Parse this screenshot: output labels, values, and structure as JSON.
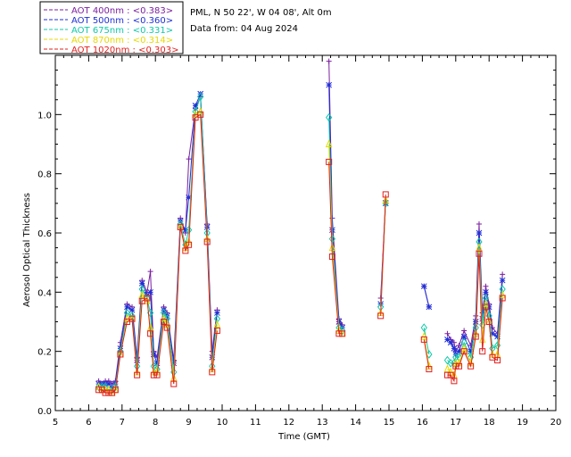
{
  "header": {
    "station": "PML, N 50 22', W 04 08', Alt 0m",
    "data_from": "Data from: 04 Aug 2024"
  },
  "legend": [
    {
      "label": "AOT  400nm : <0.383>",
      "color": "#7a1fa0"
    },
    {
      "label": "AOT  500nm : <0.360>",
      "color": "#1f2fd6"
    },
    {
      "label": "AOT  675nm : <0.331>",
      "color": "#11c9a8"
    },
    {
      "label": "AOT  870nm : <0.314>",
      "color": "#e8d800"
    },
    {
      "label": "AOT 1020nm : <0.303>",
      "color": "#e0201e"
    }
  ],
  "chart_data": {
    "type": "line",
    "xlabel": "Time (GMT)",
    "ylabel": "Aerosol Optical Thickness",
    "xlim": [
      5,
      20
    ],
    "ylim": [
      0,
      1.2
    ],
    "xticks": [
      "5",
      "6",
      "7",
      "8",
      "9",
      "10",
      "11",
      "12",
      "13",
      "14",
      "15",
      "16",
      "17",
      "18",
      "19",
      "20"
    ],
    "yticks": [
      "0.0",
      "0.2",
      "0.4",
      "0.6",
      "0.8",
      "1.0"
    ],
    "series": [
      {
        "name": "AOT  400nm",
        "color": "#7a1fa0",
        "marker": "cross",
        "x": [
          6.3,
          6.4,
          6.5,
          6.6,
          6.7,
          6.8,
          6.95,
          7.15,
          7.3,
          7.45,
          7.6,
          7.75,
          7.85,
          7.95,
          8.05,
          8.25,
          8.35,
          8.55,
          8.75,
          8.9,
          9.0,
          9.2,
          9.35,
          9.55,
          9.7,
          9.85,
          13.2,
          13.3,
          13.5,
          13.6,
          14.75,
          14.9,
          16.05,
          16.2,
          16.75,
          16.85,
          16.95,
          17.0,
          17.1,
          17.25,
          17.45,
          17.6,
          17.7,
          17.8,
          17.9,
          18.0,
          18.1,
          18.25,
          18.4
        ],
        "y": [
          0.1,
          0.09,
          0.1,
          0.1,
          0.09,
          0.1,
          0.23,
          0.36,
          0.35,
          0.18,
          0.44,
          0.4,
          0.47,
          0.2,
          0.18,
          0.35,
          0.33,
          0.17,
          0.65,
          0.6,
          0.85,
          1.02,
          1.06,
          0.63,
          0.2,
          0.34,
          1.18,
          0.65,
          0.31,
          0.29,
          0.38,
          0.71,
          0.42,
          0.35,
          0.26,
          0.24,
          0.23,
          0.2,
          0.22,
          0.27,
          0.22,
          0.32,
          0.63,
          0.33,
          0.42,
          0.36,
          0.28,
          0.26,
          0.46
        ]
      },
      {
        "name": "AOT  500nm",
        "color": "#1f2fd6",
        "marker": "star",
        "x": [
          6.3,
          6.4,
          6.5,
          6.6,
          6.7,
          6.8,
          6.95,
          7.15,
          7.3,
          7.45,
          7.6,
          7.75,
          7.85,
          7.95,
          8.05,
          8.25,
          8.35,
          8.55,
          8.75,
          8.9,
          9.0,
          9.2,
          9.35,
          9.55,
          9.7,
          9.85,
          13.2,
          13.3,
          13.5,
          13.6,
          14.75,
          14.9,
          16.05,
          16.2,
          16.75,
          16.85,
          16.95,
          17.0,
          17.1,
          17.25,
          17.45,
          17.6,
          17.7,
          17.8,
          17.9,
          18.0,
          18.1,
          18.25,
          18.4
        ],
        "y": [
          0.09,
          0.09,
          0.09,
          0.09,
          0.08,
          0.09,
          0.21,
          0.35,
          0.34,
          0.17,
          0.43,
          0.39,
          0.4,
          0.19,
          0.16,
          0.34,
          0.32,
          0.16,
          0.64,
          0.61,
          0.72,
          1.03,
          1.07,
          0.62,
          0.18,
          0.33,
          1.1,
          0.61,
          0.3,
          0.28,
          0.36,
          0.7,
          0.42,
          0.35,
          0.24,
          0.23,
          0.21,
          0.19,
          0.2,
          0.25,
          0.2,
          0.3,
          0.6,
          0.31,
          0.4,
          0.35,
          0.26,
          0.25,
          0.44
        ]
      },
      {
        "name": "AOT  675nm",
        "color": "#11c9a8",
        "marker": "diamond",
        "x": [
          6.3,
          6.4,
          6.5,
          6.6,
          6.7,
          6.8,
          6.95,
          7.15,
          7.3,
          7.45,
          7.6,
          7.75,
          7.85,
          7.95,
          8.05,
          8.25,
          8.35,
          8.55,
          8.75,
          8.9,
          9.0,
          9.2,
          9.35,
          9.55,
          9.7,
          9.85,
          13.2,
          13.3,
          13.5,
          13.6,
          14.75,
          14.9,
          16.05,
          16.2,
          16.75,
          16.85,
          16.95,
          17.0,
          17.1,
          17.25,
          17.45,
          17.6,
          17.7,
          17.8,
          17.9,
          18.0,
          18.1,
          18.25,
          18.4
        ],
        "y": [
          0.08,
          0.08,
          0.08,
          0.07,
          0.07,
          0.08,
          0.2,
          0.33,
          0.32,
          0.15,
          0.41,
          0.38,
          0.33,
          0.15,
          0.14,
          0.33,
          0.31,
          0.13,
          0.63,
          0.56,
          0.61,
          1.01,
          1.06,
          0.6,
          0.15,
          0.31,
          0.99,
          0.58,
          0.28,
          0.27,
          0.35,
          0.7,
          0.28,
          0.19,
          0.17,
          0.16,
          0.16,
          0.18,
          0.18,
          0.23,
          0.18,
          0.28,
          0.57,
          0.29,
          0.38,
          0.32,
          0.21,
          0.22,
          0.41
        ]
      },
      {
        "name": "AOT  870nm",
        "color": "#e8d800",
        "marker": "triangle",
        "x": [
          6.3,
          6.4,
          6.5,
          6.6,
          6.7,
          6.8,
          6.95,
          7.15,
          7.3,
          7.45,
          7.6,
          7.75,
          7.85,
          7.95,
          8.05,
          8.25,
          8.35,
          8.55,
          8.75,
          8.9,
          9.0,
          9.2,
          9.35,
          9.55,
          9.7,
          9.85,
          13.2,
          13.3,
          13.5,
          13.6,
          14.75,
          14.9,
          16.05,
          16.2,
          16.75,
          16.85,
          16.95,
          17.0,
          17.1,
          17.25,
          17.45,
          17.6,
          17.7,
          17.8,
          17.9,
          18.0,
          18.1,
          18.25,
          18.4
        ],
        "y": [
          0.08,
          0.07,
          0.07,
          0.07,
          0.06,
          0.07,
          0.19,
          0.31,
          0.31,
          0.13,
          0.39,
          0.37,
          0.28,
          0.13,
          0.13,
          0.31,
          0.29,
          0.11,
          0.62,
          0.55,
          0.57,
          1.0,
          1.01,
          0.58,
          0.14,
          0.29,
          0.9,
          0.55,
          0.27,
          0.26,
          0.33,
          0.71,
          0.25,
          0.15,
          0.14,
          0.13,
          0.12,
          0.16,
          0.16,
          0.21,
          0.16,
          0.26,
          0.55,
          0.24,
          0.36,
          0.3,
          0.19,
          0.19,
          0.39
        ]
      },
      {
        "name": "AOT 1020nm",
        "color": "#e0201e",
        "marker": "square",
        "x": [
          6.3,
          6.4,
          6.5,
          6.6,
          6.7,
          6.8,
          6.95,
          7.15,
          7.3,
          7.45,
          7.6,
          7.75,
          7.85,
          7.95,
          8.05,
          8.25,
          8.35,
          8.55,
          8.75,
          8.9,
          9.0,
          9.2,
          9.35,
          9.55,
          9.7,
          9.85,
          13.2,
          13.3,
          13.5,
          13.6,
          14.75,
          14.9,
          16.05,
          16.2,
          16.75,
          16.85,
          16.95,
          17.0,
          17.1,
          17.25,
          17.45,
          17.6,
          17.7,
          17.8,
          17.9,
          18.0,
          18.1,
          18.25,
          18.4
        ],
        "y": [
          0.07,
          0.07,
          0.06,
          0.06,
          0.06,
          0.07,
          0.19,
          0.3,
          0.31,
          0.12,
          0.37,
          0.38,
          0.26,
          0.12,
          0.12,
          0.3,
          0.28,
          0.09,
          0.62,
          0.54,
          0.56,
          0.99,
          1.0,
          0.57,
          0.13,
          0.27,
          0.84,
          0.52,
          0.26,
          0.26,
          0.32,
          0.73,
          0.24,
          0.14,
          0.12,
          0.12,
          0.1,
          0.15,
          0.15,
          0.2,
          0.15,
          0.25,
          0.53,
          0.2,
          0.35,
          0.3,
          0.18,
          0.17,
          0.38
        ]
      }
    ]
  }
}
